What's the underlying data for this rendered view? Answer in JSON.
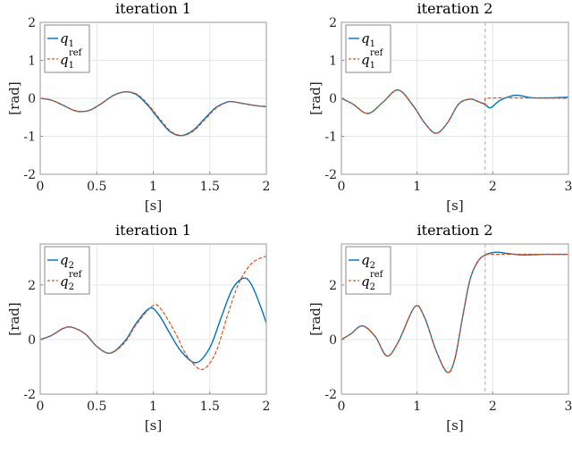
{
  "colors": {
    "actual": "#0072BD",
    "reference": "#D95319",
    "grid": "#e6e6e6",
    "axis": "#aaaaaa",
    "switch_line": "#aaaaaa"
  },
  "chart_data": [
    {
      "type": "line",
      "title": "iteration 1",
      "xlabel": "[s]",
      "ylabel": "[rad]",
      "xlim": [
        0,
        2
      ],
      "ylim": [
        -2,
        2
      ],
      "xticks": [
        "0",
        "0.5",
        "1",
        "1.5",
        "2"
      ],
      "yticks": [
        "-2",
        "-1",
        "0",
        "1",
        "2"
      ],
      "grid": true,
      "legend": {
        "position": "upper-left",
        "entries": [
          "q_1",
          "q_1^ref"
        ]
      },
      "series": [
        {
          "name": "q_1",
          "style": "solid",
          "x": [
            0,
            0.1,
            0.2,
            0.3,
            0.37,
            0.45,
            0.55,
            0.65,
            0.75,
            0.85,
            0.95,
            1.05,
            1.15,
            1.25,
            1.35,
            1.45,
            1.55,
            1.65,
            1.7,
            1.8,
            1.9,
            2.0
          ],
          "y": [
            0,
            -0.05,
            -0.18,
            -0.32,
            -0.35,
            -0.3,
            -0.12,
            0.08,
            0.17,
            0.1,
            -0.18,
            -0.55,
            -0.88,
            -0.98,
            -0.85,
            -0.55,
            -0.25,
            -0.1,
            -0.09,
            -0.14,
            -0.19,
            -0.22
          ]
        },
        {
          "name": "q_1^ref",
          "style": "dashed",
          "x": [
            0,
            0.1,
            0.2,
            0.3,
            0.37,
            0.45,
            0.55,
            0.65,
            0.76,
            0.86,
            0.96,
            1.06,
            1.16,
            1.26,
            1.36,
            1.46,
            1.56,
            1.66,
            1.71,
            1.8,
            1.9,
            2.0
          ],
          "y": [
            0,
            -0.05,
            -0.18,
            -0.32,
            -0.35,
            -0.3,
            -0.12,
            0.08,
            0.17,
            0.1,
            -0.18,
            -0.55,
            -0.88,
            -0.98,
            -0.85,
            -0.55,
            -0.25,
            -0.1,
            -0.09,
            -0.14,
            -0.19,
            -0.22
          ]
        }
      ]
    },
    {
      "type": "line",
      "title": "iteration 2",
      "xlabel": "[s]",
      "ylabel": "[rad]",
      "xlim": [
        0,
        3
      ],
      "ylim": [
        -2,
        2
      ],
      "xticks": [
        "0",
        "1",
        "2",
        "3"
      ],
      "yticks": [
        "-2",
        "-1",
        "0",
        "1",
        "2"
      ],
      "grid": true,
      "vline_x": 1.9,
      "legend": {
        "position": "upper-left",
        "entries": [
          "q_1",
          "q_1^ref"
        ]
      },
      "series": [
        {
          "name": "q_1",
          "style": "solid",
          "x": [
            0,
            0.15,
            0.35,
            0.55,
            0.75,
            0.95,
            1.1,
            1.25,
            1.4,
            1.55,
            1.7,
            1.8,
            1.9,
            1.97,
            2.1,
            2.3,
            2.5,
            2.7,
            3.0
          ],
          "y": [
            0,
            -0.15,
            -0.4,
            -0.1,
            0.22,
            -0.2,
            -0.65,
            -0.92,
            -0.65,
            -0.15,
            -0.02,
            -0.08,
            -0.16,
            -0.25,
            -0.05,
            0.08,
            0.02,
            0.01,
            0.03
          ]
        },
        {
          "name": "q_1^ref",
          "style": "dashed",
          "x": [
            0,
            0.15,
            0.35,
            0.55,
            0.75,
            0.95,
            1.1,
            1.25,
            1.4,
            1.55,
            1.7,
            1.8,
            1.9,
            1.9,
            3.0
          ],
          "y": [
            0,
            -0.15,
            -0.4,
            -0.1,
            0.22,
            -0.2,
            -0.65,
            -0.92,
            -0.65,
            -0.15,
            -0.02,
            -0.08,
            -0.16,
            0,
            0
          ]
        }
      ]
    },
    {
      "type": "line",
      "title": "iteration 1",
      "xlabel": "[s]",
      "ylabel": "[rad]",
      "xlim": [
        0,
        2
      ],
      "ylim": [
        -2,
        3.5
      ],
      "xticks": [
        "0",
        "0.5",
        "1",
        "1.5",
        "2"
      ],
      "yticks": [
        "-2",
        "0",
        "2"
      ],
      "grid": true,
      "legend": {
        "position": "upper-left",
        "entries": [
          "q_2",
          "q_2^ref"
        ]
      },
      "series": [
        {
          "name": "q_2",
          "style": "solid",
          "x": [
            0,
            0.1,
            0.2,
            0.28,
            0.4,
            0.5,
            0.62,
            0.75,
            0.85,
            0.97,
            1.05,
            1.15,
            1.25,
            1.38,
            1.5,
            1.6,
            1.7,
            1.8,
            1.87,
            1.95,
            2.0
          ],
          "y": [
            0,
            0.15,
            0.4,
            0.45,
            0.2,
            -0.25,
            -0.5,
            -0.05,
            0.6,
            1.15,
            0.9,
            0.2,
            -0.45,
            -0.85,
            -0.3,
            0.8,
            1.85,
            2.25,
            2.0,
            1.2,
            0.6
          ]
        },
        {
          "name": "q_2^ref",
          "style": "dashed",
          "x": [
            0,
            0.1,
            0.2,
            0.28,
            0.4,
            0.5,
            0.62,
            0.75,
            0.85,
            1.0,
            1.08,
            1.2,
            1.3,
            1.43,
            1.55,
            1.65,
            1.75,
            1.85,
            1.93,
            2.0
          ],
          "y": [
            0,
            0.15,
            0.4,
            0.45,
            0.2,
            -0.25,
            -0.5,
            -0.1,
            0.55,
            1.25,
            1.05,
            0.2,
            -0.6,
            -1.1,
            -0.5,
            0.8,
            2.0,
            2.7,
            2.95,
            3.05
          ]
        }
      ]
    },
    {
      "type": "line",
      "title": "iteration 2",
      "xlabel": "[s]",
      "ylabel": "[rad]",
      "xlim": [
        0,
        3
      ],
      "ylim": [
        -2,
        3.5
      ],
      "xticks": [
        "0",
        "1",
        "2",
        "3"
      ],
      "yticks": [
        "-2",
        "0",
        "2"
      ],
      "grid": true,
      "vline_x": 1.9,
      "legend": {
        "position": "upper-left",
        "entries": [
          "q_2",
          "q_2^ref"
        ]
      },
      "series": [
        {
          "name": "q_2",
          "style": "solid",
          "x": [
            0,
            0.12,
            0.28,
            0.45,
            0.6,
            0.75,
            0.97,
            1.1,
            1.25,
            1.4,
            1.5,
            1.6,
            1.7,
            1.8,
            1.9,
            2.05,
            2.2,
            2.4,
            2.7,
            3.0
          ],
          "y": [
            0,
            0.2,
            0.5,
            0.1,
            -0.6,
            -0.1,
            1.2,
            0.8,
            -0.4,
            -1.2,
            -0.7,
            0.8,
            2.2,
            2.85,
            3.1,
            3.2,
            3.15,
            3.1,
            3.12,
            3.12
          ]
        },
        {
          "name": "q_2^ref",
          "style": "dashed",
          "x": [
            0,
            0.12,
            0.28,
            0.45,
            0.6,
            0.75,
            0.97,
            1.1,
            1.25,
            1.4,
            1.5,
            1.6,
            1.7,
            1.8,
            1.9,
            2.05,
            3.0
          ],
          "y": [
            0,
            0.2,
            0.5,
            0.1,
            -0.6,
            -0.1,
            1.2,
            0.8,
            -0.4,
            -1.2,
            -0.7,
            0.8,
            2.2,
            2.85,
            3.08,
            3.12,
            3.12
          ]
        }
      ]
    }
  ],
  "panels": [
    {
      "title": "iteration 1",
      "xlabel": "[s]",
      "ylabel": "[rad]"
    },
    {
      "title": "iteration 2",
      "xlabel": "[s]",
      "ylabel": "[rad]"
    },
    {
      "title": "iteration 1",
      "xlabel": "[s]",
      "ylabel": "[rad]"
    },
    {
      "title": "iteration 2",
      "xlabel": "[s]",
      "ylabel": "[rad]"
    }
  ]
}
